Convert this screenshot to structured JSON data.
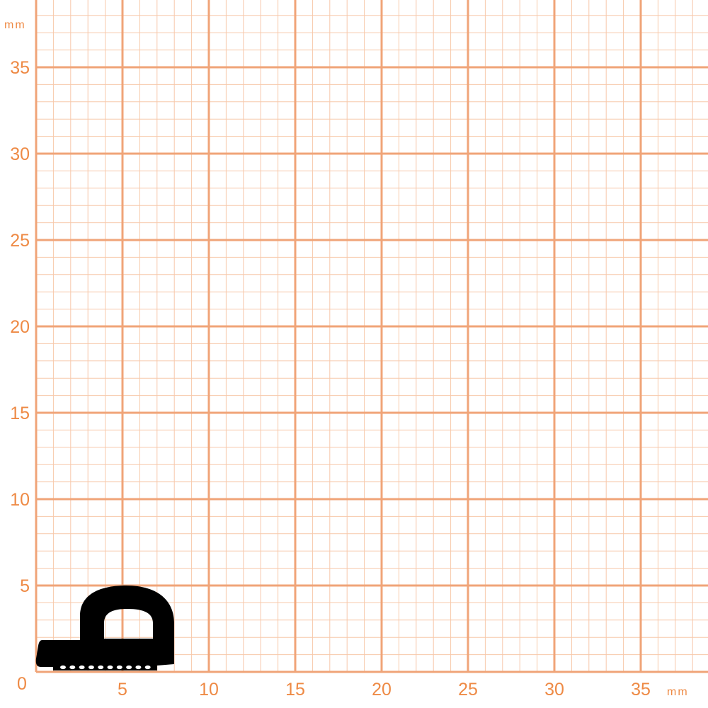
{
  "axes": {
    "unit_label_y": "mm",
    "unit_label_x": "mm",
    "range_mm": [
      0,
      39
    ],
    "major_step_mm": 5,
    "minor_step_mm": 1,
    "x_ticks": [
      "5",
      "10",
      "15",
      "20",
      "25",
      "30",
      "35"
    ],
    "y_ticks": [
      "5",
      "10",
      "15",
      "20",
      "25",
      "30",
      "35"
    ],
    "origin_label": "0"
  },
  "colors": {
    "major_line": "#f0a478",
    "minor_line": "#f7c8aa",
    "label": "#ee8a45",
    "profile": "#000000"
  },
  "profile": {
    "shape": "D-profile seal with flat adhesive base",
    "hole_count": 10
  }
}
